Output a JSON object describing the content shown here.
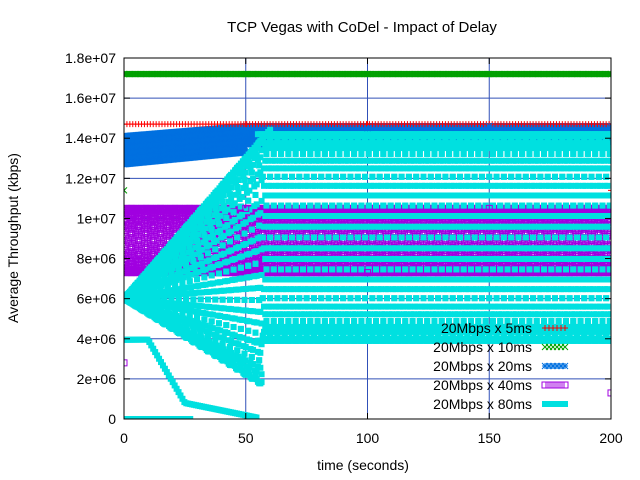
{
  "chart_data": {
    "type": "scatter",
    "title": "TCP Vegas with CoDel - Impact of Delay",
    "xlabel": "time (seconds)",
    "ylabel": "Average Throughput (kbps)",
    "xlim": [
      0,
      200
    ],
    "ylim": [
      0,
      18000000
    ],
    "x_ticks": [
      0,
      50,
      100,
      150,
      200
    ],
    "x_tick_labels": [
      "0",
      "50",
      "100",
      "150",
      "200"
    ],
    "y_ticks": [
      0,
      2000000,
      4000000,
      6000000,
      8000000,
      10000000,
      12000000,
      14000000,
      16000000,
      18000000
    ],
    "y_tick_labels": [
      "0",
      "2e+06",
      "4e+06",
      "6e+06",
      "8e+06",
      "1e+07",
      "1.2e+07",
      "1.4e+07",
      "1.6e+07",
      "1.8e+07"
    ],
    "grid": true,
    "legend_position": "bottom-right",
    "series": [
      {
        "name": "20Mbps x 5ms",
        "marker": "plus",
        "color": "#ff0000",
        "samples": [
          [
            0,
            14700000
          ],
          [
            50,
            14700000
          ],
          [
            100,
            14700000
          ],
          [
            150,
            14700000
          ],
          [
            200,
            14700000
          ],
          [
            200,
            11400000
          ]
        ]
      },
      {
        "name": "20Mbps x 10ms",
        "marker": "cross",
        "color": "#00a000",
        "samples": [
          [
            0,
            11400000
          ],
          [
            0,
            17200000
          ],
          [
            50,
            17200000
          ],
          [
            100,
            17200000
          ],
          [
            150,
            17200000
          ],
          [
            200,
            17200000
          ]
        ]
      },
      {
        "name": "20Mbps x 20ms",
        "marker": "star",
        "color": "#0070e0",
        "samples": [
          [
            0,
            13100000
          ],
          [
            20,
            13600000
          ],
          [
            50,
            14300000
          ],
          [
            100,
            14500000
          ],
          [
            150,
            14600000
          ],
          [
            200,
            14600000
          ]
        ],
        "band": [
          13300000,
          14600000
        ]
      },
      {
        "name": "20Mbps x 40ms",
        "marker": "square-open",
        "color": "#a000e0",
        "samples": [
          [
            0,
            2800000
          ],
          [
            0,
            7500000
          ],
          [
            50,
            10500000
          ],
          [
            100,
            7300000
          ],
          [
            150,
            10500000
          ],
          [
            200,
            1300000
          ]
        ],
        "band": [
          7200000,
          10600000
        ]
      },
      {
        "name": "20Mbps x 80ms",
        "marker": "square-filled",
        "color": "#00e0e0",
        "samples": [
          [
            0,
            0
          ],
          [
            10,
            0
          ],
          [
            25,
            0
          ],
          [
            50,
            2200000
          ],
          [
            57,
            14000000
          ],
          [
            100,
            4000000
          ],
          [
            150,
            4000000
          ],
          [
            200,
            4000000
          ]
        ],
        "band": [
          3800000,
          14200000
        ]
      }
    ]
  }
}
